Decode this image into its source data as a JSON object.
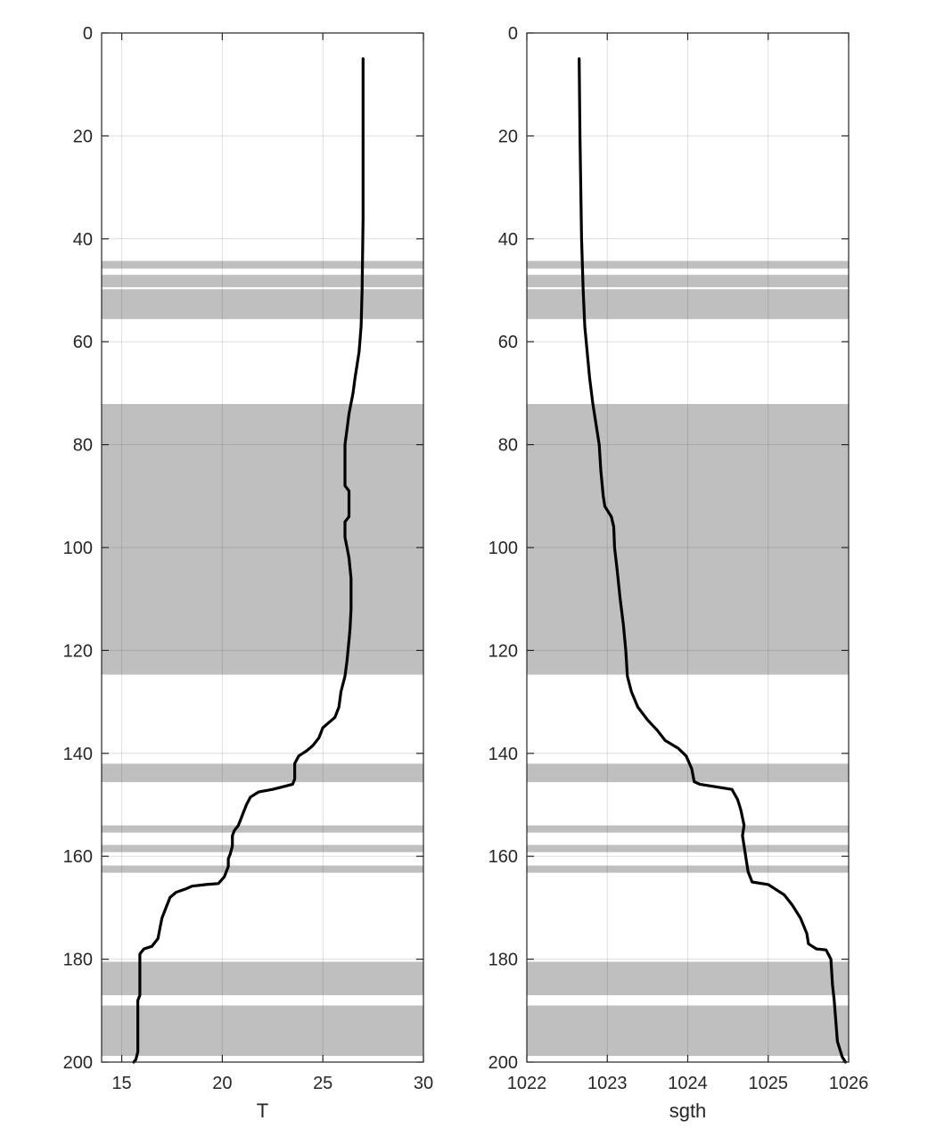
{
  "chart_data": [
    {
      "type": "line",
      "title": "",
      "xlabel": "T",
      "ylabel": "",
      "xlim": [
        14,
        30
      ],
      "ylim": [
        0,
        200
      ],
      "y_reversed": true,
      "grid": true,
      "xticks": [
        15,
        20,
        25,
        30
      ],
      "yticks": [
        0,
        20,
        40,
        60,
        80,
        100,
        120,
        140,
        160,
        180,
        200
      ],
      "line_color": "#000000",
      "band_color": "#bfbfbf",
      "shaded_depth_bands": [
        [
          44.3,
          45.8
        ],
        [
          47.0,
          49.4
        ],
        [
          49.8,
          55.6
        ],
        [
          72.1,
          124.7
        ],
        [
          142.0,
          145.6
        ],
        [
          154.0,
          155.4
        ],
        [
          157.8,
          159.2
        ],
        [
          161.8,
          163.2
        ],
        [
          180.5,
          187.0
        ],
        [
          189.0,
          198.8
        ]
      ],
      "series": [
        {
          "points": [
            [
              27.0,
              5
            ],
            [
              27.0,
              20
            ],
            [
              27.0,
              36
            ],
            [
              26.95,
              50
            ],
            [
              26.9,
              57
            ],
            [
              26.8,
              62
            ],
            [
              26.6,
              67
            ],
            [
              26.5,
              70
            ],
            [
              26.3,
              74
            ],
            [
              26.2,
              77
            ],
            [
              26.1,
              80
            ],
            [
              26.1,
              85
            ],
            [
              26.1,
              88
            ],
            [
              26.3,
              89
            ],
            [
              26.3,
              94
            ],
            [
              26.1,
              95
            ],
            [
              26.1,
              98
            ],
            [
              26.2,
              100
            ],
            [
              26.3,
              102
            ],
            [
              26.4,
              106
            ],
            [
              26.4,
              112
            ],
            [
              26.35,
              116
            ],
            [
              26.3,
              118
            ],
            [
              26.2,
              122
            ],
            [
              26.1,
              125
            ],
            [
              25.9,
              128
            ],
            [
              25.8,
              131
            ],
            [
              25.6,
              133
            ],
            [
              25.3,
              134
            ],
            [
              25.0,
              135
            ],
            [
              24.8,
              137
            ],
            [
              24.5,
              138.5
            ],
            [
              24.2,
              139.5
            ],
            [
              23.8,
              140.5
            ],
            [
              23.6,
              142
            ],
            [
              23.6,
              145
            ],
            [
              23.5,
              146
            ],
            [
              23.2,
              146.3
            ],
            [
              22.5,
              147
            ],
            [
              21.8,
              147.5
            ],
            [
              21.4,
              148.5
            ],
            [
              21.2,
              150
            ],
            [
              21.0,
              152
            ],
            [
              20.8,
              154
            ],
            [
              20.6,
              155
            ],
            [
              20.5,
              156
            ],
            [
              20.5,
              158
            ],
            [
              20.4,
              159.5
            ],
            [
              20.3,
              160.5
            ],
            [
              20.3,
              162
            ],
            [
              20.1,
              164
            ],
            [
              19.8,
              165.3
            ],
            [
              19.2,
              165.5
            ],
            [
              18.5,
              165.8
            ],
            [
              18.2,
              166.3
            ],
            [
              17.7,
              167
            ],
            [
              17.4,
              168
            ],
            [
              17.2,
              170
            ],
            [
              17.0,
              172
            ],
            [
              16.9,
              174
            ],
            [
              16.8,
              176
            ],
            [
              16.5,
              177.5
            ],
            [
              16.1,
              178
            ],
            [
              15.9,
              179
            ],
            [
              15.9,
              185
            ],
            [
              15.9,
              187
            ],
            [
              15.8,
              188
            ],
            [
              15.8,
              195
            ],
            [
              15.8,
              198
            ],
            [
              15.7,
              199.5
            ],
            [
              15.6,
              200
            ]
          ]
        }
      ]
    },
    {
      "type": "line",
      "title": "",
      "xlabel": "sgth",
      "ylabel": "",
      "xlim": [
        1022,
        1026
      ],
      "ylim": [
        0,
        200
      ],
      "y_reversed": true,
      "grid": true,
      "xticks": [
        1022,
        1023,
        1024,
        1025,
        1026
      ],
      "yticks": [
        0,
        20,
        40,
        60,
        80,
        100,
        120,
        140,
        160,
        180,
        200
      ],
      "line_color": "#000000",
      "band_color": "#bfbfbf",
      "shaded_depth_bands": [
        [
          44.3,
          45.8
        ],
        [
          47.0,
          49.4
        ],
        [
          49.8,
          55.6
        ],
        [
          72.1,
          124.7
        ],
        [
          142.0,
          145.6
        ],
        [
          154.0,
          155.4
        ],
        [
          157.8,
          159.2
        ],
        [
          161.8,
          163.2
        ],
        [
          180.5,
          187.0
        ],
        [
          189.0,
          198.8
        ]
      ],
      "series": [
        {
          "points": [
            [
              1022.65,
              5
            ],
            [
              1022.66,
              20
            ],
            [
              1022.67,
              30
            ],
            [
              1022.68,
              40
            ],
            [
              1022.7,
              50
            ],
            [
              1022.72,
              57
            ],
            [
              1022.75,
              62
            ],
            [
              1022.78,
              67
            ],
            [
              1022.82,
              72
            ],
            [
              1022.86,
              76
            ],
            [
              1022.9,
              80
            ],
            [
              1022.92,
              85
            ],
            [
              1022.95,
              90
            ],
            [
              1022.97,
              92
            ],
            [
              1023.05,
              94
            ],
            [
              1023.08,
              96
            ],
            [
              1023.09,
              100
            ],
            [
              1023.12,
              104
            ],
            [
              1023.16,
              110
            ],
            [
              1023.2,
              115
            ],
            [
              1023.23,
              120
            ],
            [
              1023.25,
              125
            ],
            [
              1023.3,
              128
            ],
            [
              1023.38,
              131
            ],
            [
              1023.5,
              133.5
            ],
            [
              1023.62,
              135.5
            ],
            [
              1023.72,
              137.5
            ],
            [
              1023.88,
              139
            ],
            [
              1023.98,
              140.5
            ],
            [
              1024.05,
              143
            ],
            [
              1024.08,
              145.5
            ],
            [
              1024.15,
              146
            ],
            [
              1024.35,
              146.5
            ],
            [
              1024.55,
              147
            ],
            [
              1024.62,
              149
            ],
            [
              1024.66,
              151
            ],
            [
              1024.7,
              154
            ],
            [
              1024.68,
              156
            ],
            [
              1024.71,
              159
            ],
            [
              1024.73,
              161
            ],
            [
              1024.75,
              163
            ],
            [
              1024.8,
              165
            ],
            [
              1025.0,
              165.5
            ],
            [
              1025.1,
              166.5
            ],
            [
              1025.2,
              167.5
            ],
            [
              1025.3,
              169.5
            ],
            [
              1025.4,
              172
            ],
            [
              1025.48,
              175
            ],
            [
              1025.5,
              177
            ],
            [
              1025.6,
              178
            ],
            [
              1025.72,
              178.2
            ],
            [
              1025.78,
              180
            ],
            [
              1025.8,
              185
            ],
            [
              1025.82,
              188
            ],
            [
              1025.84,
              192
            ],
            [
              1025.86,
              196
            ],
            [
              1025.92,
              199
            ],
            [
              1025.96,
              200
            ]
          ]
        }
      ]
    }
  ]
}
